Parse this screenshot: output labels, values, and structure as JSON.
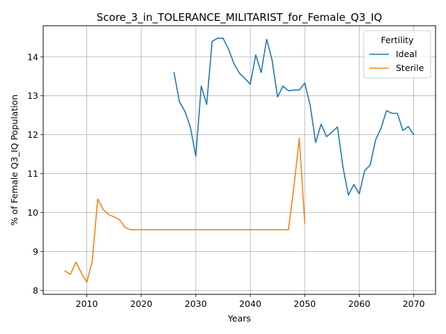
{
  "chart_data": {
    "type": "line",
    "title": "Score_3_in_TOLERANCE_MILITARIST_for_Female_Q3_IQ",
    "xlabel": "Years",
    "ylabel": "% of Female Q3_IQ Population",
    "xlim": [
      2002,
      2074
    ],
    "ylim": [
      7.9,
      14.8
    ],
    "xticks": [
      2010,
      2020,
      2030,
      2040,
      2050,
      2060,
      2070
    ],
    "yticks": [
      8,
      9,
      10,
      11,
      12,
      13,
      14
    ],
    "grid": true,
    "legend": {
      "title": "Fertility",
      "position": "top-right"
    },
    "series": [
      {
        "name": "Ideal",
        "color": "#1f77b4",
        "x": [
          2026,
          2027,
          2028,
          2029,
          2030,
          2031,
          2032,
          2033,
          2034,
          2035,
          2036,
          2037,
          2038,
          2039,
          2040,
          2041,
          2042,
          2043,
          2044,
          2045,
          2046,
          2047,
          2048,
          2049,
          2050,
          2051,
          2052,
          2053,
          2054,
          2055,
          2056,
          2057,
          2058,
          2059,
          2060,
          2061,
          2062,
          2063,
          2064,
          2065,
          2066,
          2067,
          2068,
          2069,
          2070
        ],
        "values": [
          13.6,
          12.85,
          12.6,
          12.2,
          11.45,
          13.25,
          12.78,
          14.4,
          14.48,
          14.48,
          14.2,
          13.83,
          13.58,
          13.45,
          13.3,
          14.05,
          13.6,
          14.45,
          13.92,
          12.97,
          13.25,
          13.13,
          13.15,
          13.15,
          13.33,
          12.75,
          11.8,
          12.27,
          11.95,
          12.07,
          12.2,
          11.18,
          10.45,
          10.72,
          10.48,
          11.08,
          11.22,
          11.87,
          12.17,
          12.62,
          12.55,
          12.55,
          12.11,
          12.21,
          12.0
        ]
      },
      {
        "name": "Sterile",
        "color": "#ff7f0e",
        "x": [
          2006,
          2007,
          2008,
          2009,
          2010,
          2011,
          2012,
          2013,
          2014,
          2015,
          2016,
          2017,
          2018,
          2019,
          2020,
          2021,
          2022,
          2023,
          2024,
          2025,
          2026,
          2027,
          2028,
          2029,
          2030,
          2031,
          2032,
          2033,
          2034,
          2035,
          2036,
          2037,
          2038,
          2039,
          2040,
          2041,
          2042,
          2043,
          2044,
          2045,
          2046,
          2047,
          2048,
          2049,
          2050
        ],
        "values": [
          8.5,
          8.41,
          8.73,
          8.45,
          8.21,
          8.75,
          10.35,
          10.08,
          9.95,
          9.89,
          9.82,
          9.62,
          9.56,
          9.56,
          9.56,
          9.56,
          9.56,
          9.56,
          9.56,
          9.56,
          9.56,
          9.56,
          9.56,
          9.56,
          9.56,
          9.56,
          9.56,
          9.56,
          9.56,
          9.56,
          9.56,
          9.56,
          9.56,
          9.56,
          9.56,
          9.56,
          9.56,
          9.56,
          9.56,
          9.56,
          9.56,
          9.56,
          10.65,
          11.91,
          9.73
        ]
      }
    ]
  }
}
